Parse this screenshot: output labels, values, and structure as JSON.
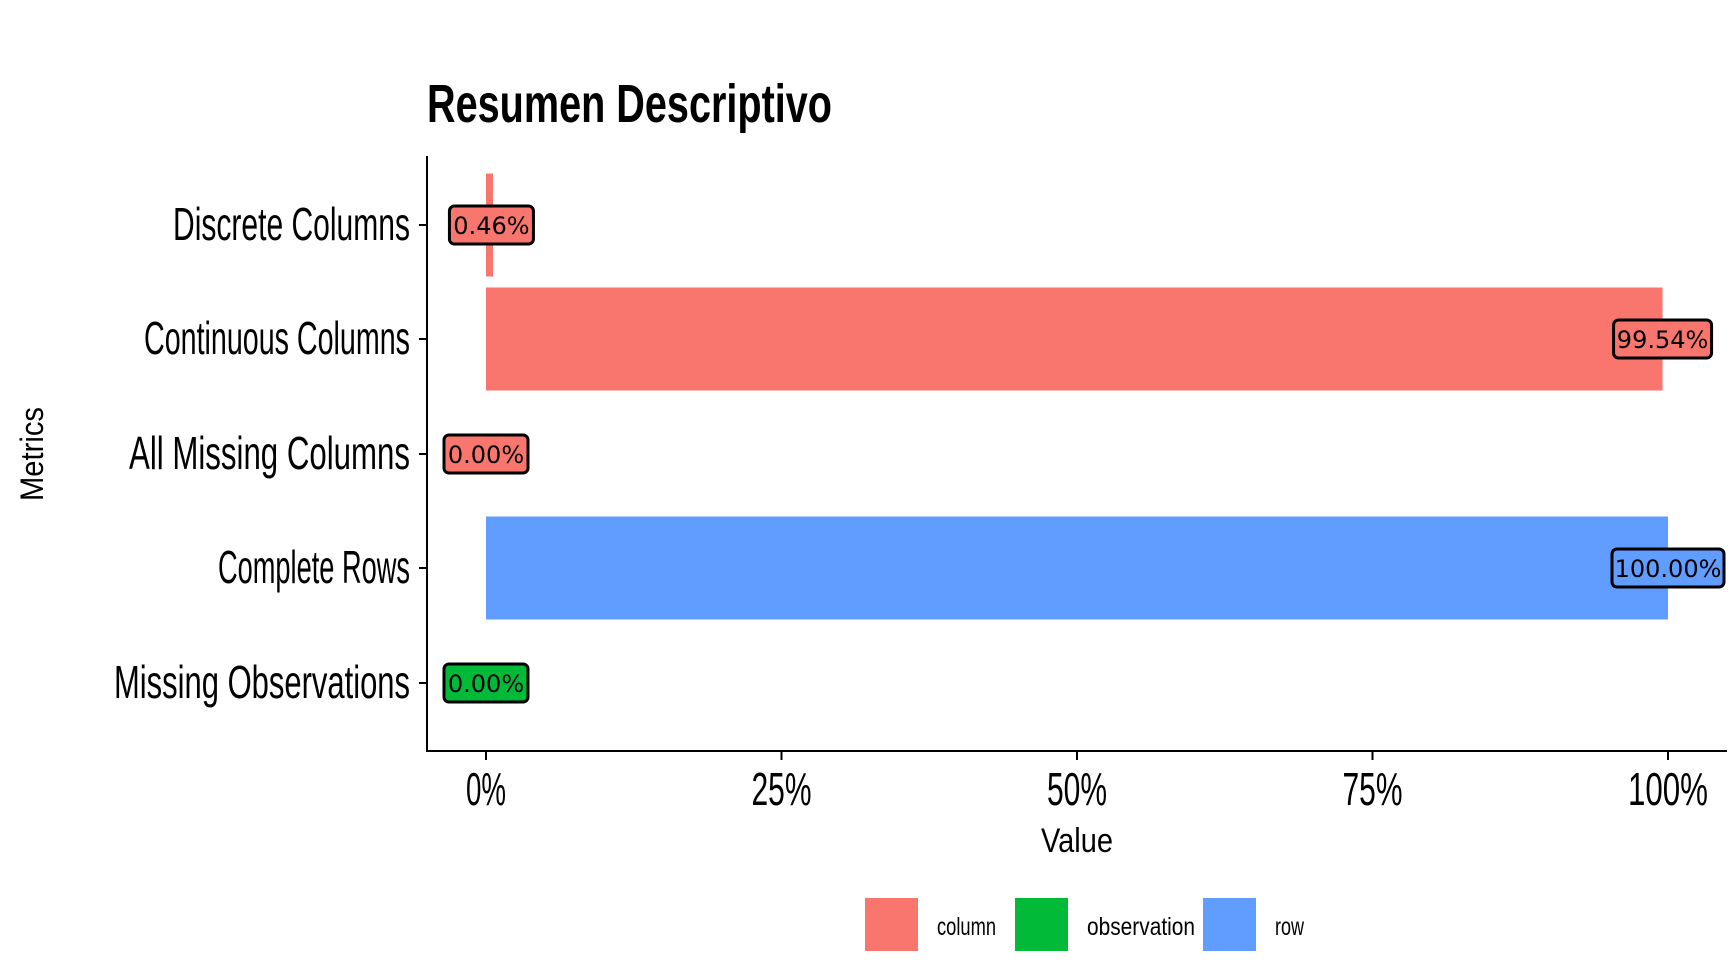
{
  "chart_data": {
    "type": "bar",
    "orientation": "horizontal",
    "title": "Resumen Descriptivo",
    "xlabel": "Value",
    "ylabel": "Metrics",
    "xlim": [
      0,
      1
    ],
    "x_ticks": [
      0,
      0.25,
      0.5,
      0.75,
      1
    ],
    "x_tick_labels": [
      "0%",
      "25%",
      "50%",
      "75%",
      "100%"
    ],
    "grid": false,
    "legend_position": "bottom",
    "categories": [
      "Discrete Columns",
      "Continuous Columns",
      "All Missing Columns",
      "Complete Rows",
      "Missing Observations"
    ],
    "values": [
      0.0046,
      0.9954,
      0.0,
      1.0,
      0.0
    ],
    "value_labels": [
      "0.46%",
      "99.54%",
      "0.00%",
      "100.00%",
      "0.00%"
    ],
    "groups": [
      "column",
      "column",
      "column",
      "row",
      "observation"
    ],
    "legend": [
      {
        "name": "column",
        "color": "#F8766D"
      },
      {
        "name": "observation",
        "color": "#00BA38"
      },
      {
        "name": "row",
        "color": "#619CFF"
      }
    ]
  }
}
